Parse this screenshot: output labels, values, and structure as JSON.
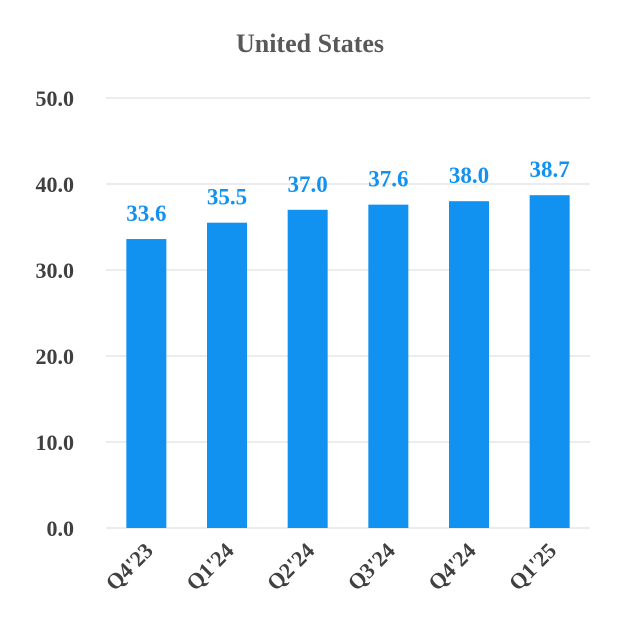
{
  "chart_data": {
    "type": "bar",
    "title": "United States",
    "xlabel": "",
    "ylabel": "",
    "categories": [
      "Q4'23",
      "Q1'24",
      "Q2'24",
      "Q3'24",
      "Q4'24",
      "Q1'25"
    ],
    "values": [
      33.6,
      35.5,
      37.0,
      37.6,
      38.0,
      38.7
    ],
    "data_labels": [
      "33.6",
      "35.5",
      "37.0",
      "37.6",
      "38.0",
      "38.7"
    ],
    "ylim": [
      0,
      50
    ],
    "yticks": [
      "0.0",
      "10.0",
      "20.0",
      "30.0",
      "40.0",
      "50.0"
    ],
    "ytick_values": [
      0,
      10,
      20,
      30,
      40,
      50
    ],
    "grid": true,
    "legend": "none"
  },
  "colors": {
    "bar": "#1192F0",
    "label": "#1192F0",
    "title": "#595959",
    "ticks": "#404040",
    "grid": "#D9D9D9"
  }
}
